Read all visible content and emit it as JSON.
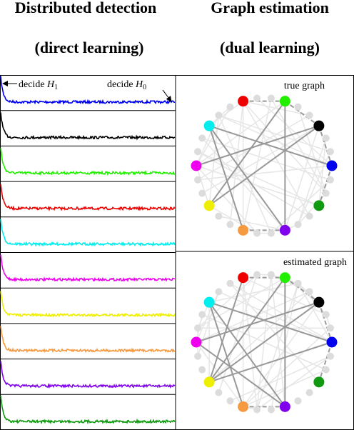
{
  "header": {
    "left": {
      "title": "Distributed detection",
      "subtitle": "(direct learning)"
    },
    "right": {
      "title": "Graph estimation",
      "subtitle": "(dual learning)"
    }
  },
  "detection": {
    "left_note": {
      "text": "decide ",
      "var": "H",
      "sub": "1"
    },
    "right_note": {
      "text": "decide ",
      "var": "H",
      "sub": "0"
    },
    "colors": [
      "#0000ee",
      "#000000",
      "#22ee00",
      "#ee0000",
      "#00eeee",
      "#ee00ee",
      "#eeee00",
      "#f59a40",
      "#8000ee",
      "#119911"
    ]
  },
  "graphs": [
    {
      "label": "true graph",
      "edges": [
        [
          0,
          1
        ],
        [
          1,
          2
        ],
        [
          1,
          5
        ],
        [
          1,
          7
        ],
        [
          2,
          3
        ],
        [
          2,
          8
        ],
        [
          3,
          4
        ],
        [
          3,
          9
        ],
        [
          9,
          5
        ],
        [
          9,
          6
        ],
        [
          6,
          5
        ],
        [
          7,
          2
        ]
      ]
    },
    {
      "label": "estimated graph",
      "edges": [
        [
          0,
          1
        ],
        [
          1,
          2
        ],
        [
          1,
          5
        ],
        [
          1,
          7
        ],
        [
          2,
          3
        ],
        [
          2,
          8
        ],
        [
          3,
          4
        ],
        [
          3,
          9
        ],
        [
          9,
          5
        ],
        [
          9,
          6
        ],
        [
          6,
          5
        ],
        [
          7,
          2
        ],
        [
          8,
          5
        ],
        [
          0,
          7
        ],
        [
          3,
          7
        ]
      ]
    }
  ],
  "node_colors": [
    "#ee0000",
    "#22ee00",
    "#000000",
    "#0000ee",
    "#119911",
    "#8000ee",
    "#f59a40",
    "#eeee00",
    "#ee00ee",
    "#00eeee"
  ]
}
